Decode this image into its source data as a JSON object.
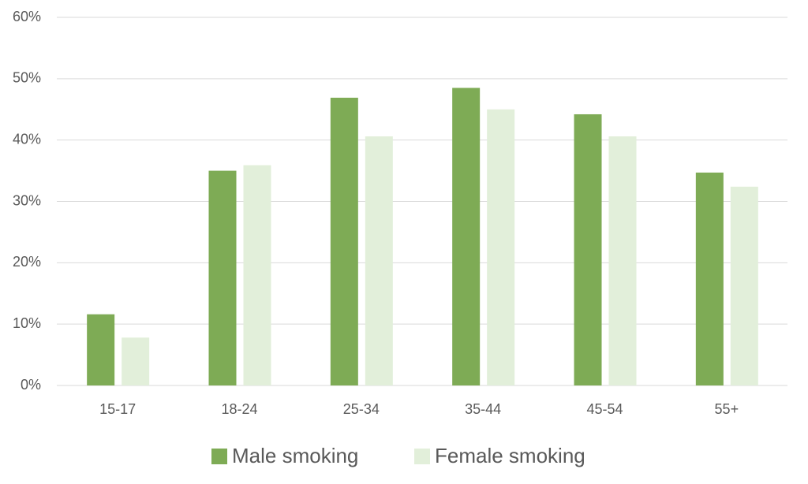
{
  "chart_data": {
    "type": "bar",
    "categories": [
      "15-17",
      "18-24",
      "25-34",
      "35-44",
      "45-54",
      "55+"
    ],
    "series": [
      {
        "name": "Male smoking",
        "color": "#7eab55",
        "values": [
          11.6,
          35.0,
          46.9,
          48.5,
          44.2,
          34.7
        ]
      },
      {
        "name": "Female smoking",
        "color": "#e2efda",
        "values": [
          7.8,
          35.9,
          40.6,
          45.0,
          40.6,
          32.4
        ]
      }
    ],
    "ylim": [
      0,
      60
    ],
    "yticks": [
      {
        "value": 0,
        "label": "0%"
      },
      {
        "value": 10,
        "label": "10%"
      },
      {
        "value": 20,
        "label": "20%"
      },
      {
        "value": 30,
        "label": "30%"
      },
      {
        "value": 40,
        "label": "40%"
      },
      {
        "value": 50,
        "label": "50%"
      },
      {
        "value": 60,
        "label": "60%"
      }
    ],
    "grid": true,
    "legend": "bottom"
  }
}
